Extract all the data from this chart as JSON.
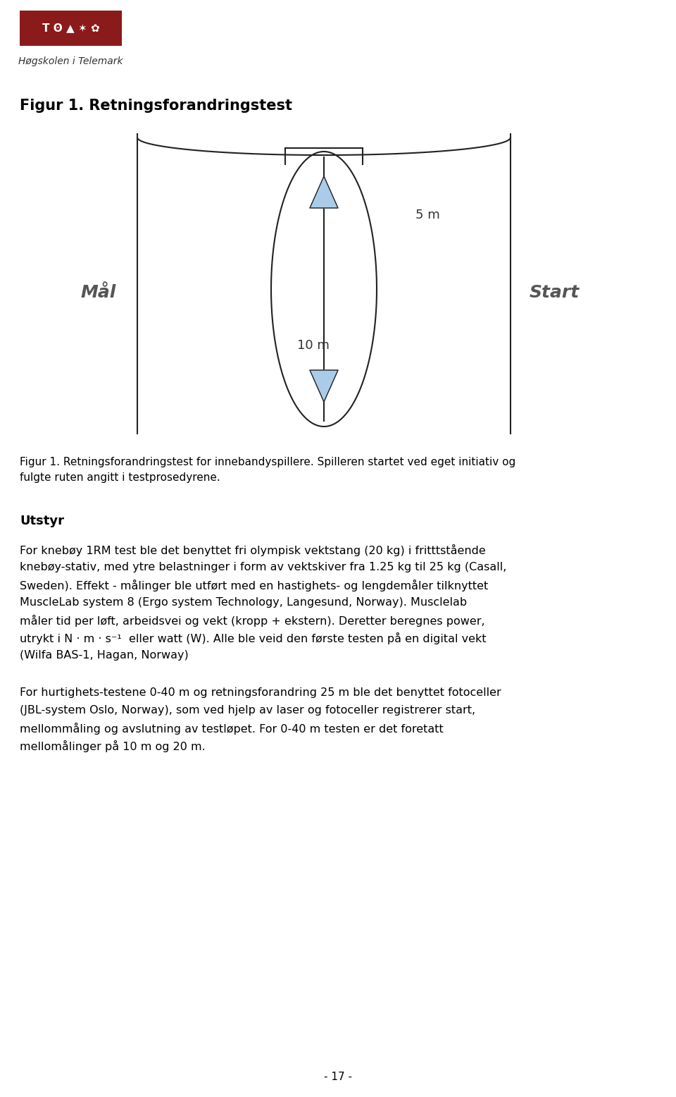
{
  "background_color": "#ffffff",
  "page_width": 9.6,
  "page_height": 15.56,
  "logo_subtext": "Høgskolen i Telemark",
  "figure_title": "Figur 1. Retningsforandringstest",
  "caption_line1": "Figur 1. Retningsforandringstest for innebandyspillere. Spilleren startet ved eget initiativ og",
  "caption_line2": "fulgte ruten angitt i testprosedyrene.",
  "section_heading": "Utstyr",
  "para1_lines": [
    "For knebøy 1RM test ble det benyttet fri olympisk vektstang (20 kg) i fritttstående",
    "knebøy-stativ, med ytre belastninger i form av vektskiver fra 1.25 kg til 25 kg (Casall,",
    "Sweden). Effekt - målinger ble utført med en hastighets- og lengdemåler tilknyttet",
    "MuscleLab system 8 (Ergo system Technology, Langesund, Norway). Musclelab",
    "måler tid per løft, arbeidsvei og vekt (kropp + ekstern). Deretter beregnes power,",
    "utrykt i N · m · s⁻¹  eller watt (W). Alle ble veid den første testen på en digital vekt",
    "(Wilfa BAS-1, Hagan, Norway)"
  ],
  "para2_lines": [
    "For hurtighets-testene 0-40 m og retningsforandring 25 m ble det benyttet fotoceller",
    "(JBL-system Oslo, Norway), som ved hjelp av laser og fotoceller registrerer start,",
    "mellommåling og avslutning av testløpet. For 0-40 m testen er det foretatt",
    "mellomålinger på 10 m og 20 m."
  ],
  "page_number": "- 17 -",
  "logo_bg_color": "#8B1A1A",
  "text_color": "#000000",
  "heading_color": "#000000",
  "line_color": "#222222",
  "arrow_fill_color": "#aacce8",
  "mal_label": "Mål",
  "start_label": "Start",
  "label_5m": "5 m",
  "label_10m": "10 m"
}
